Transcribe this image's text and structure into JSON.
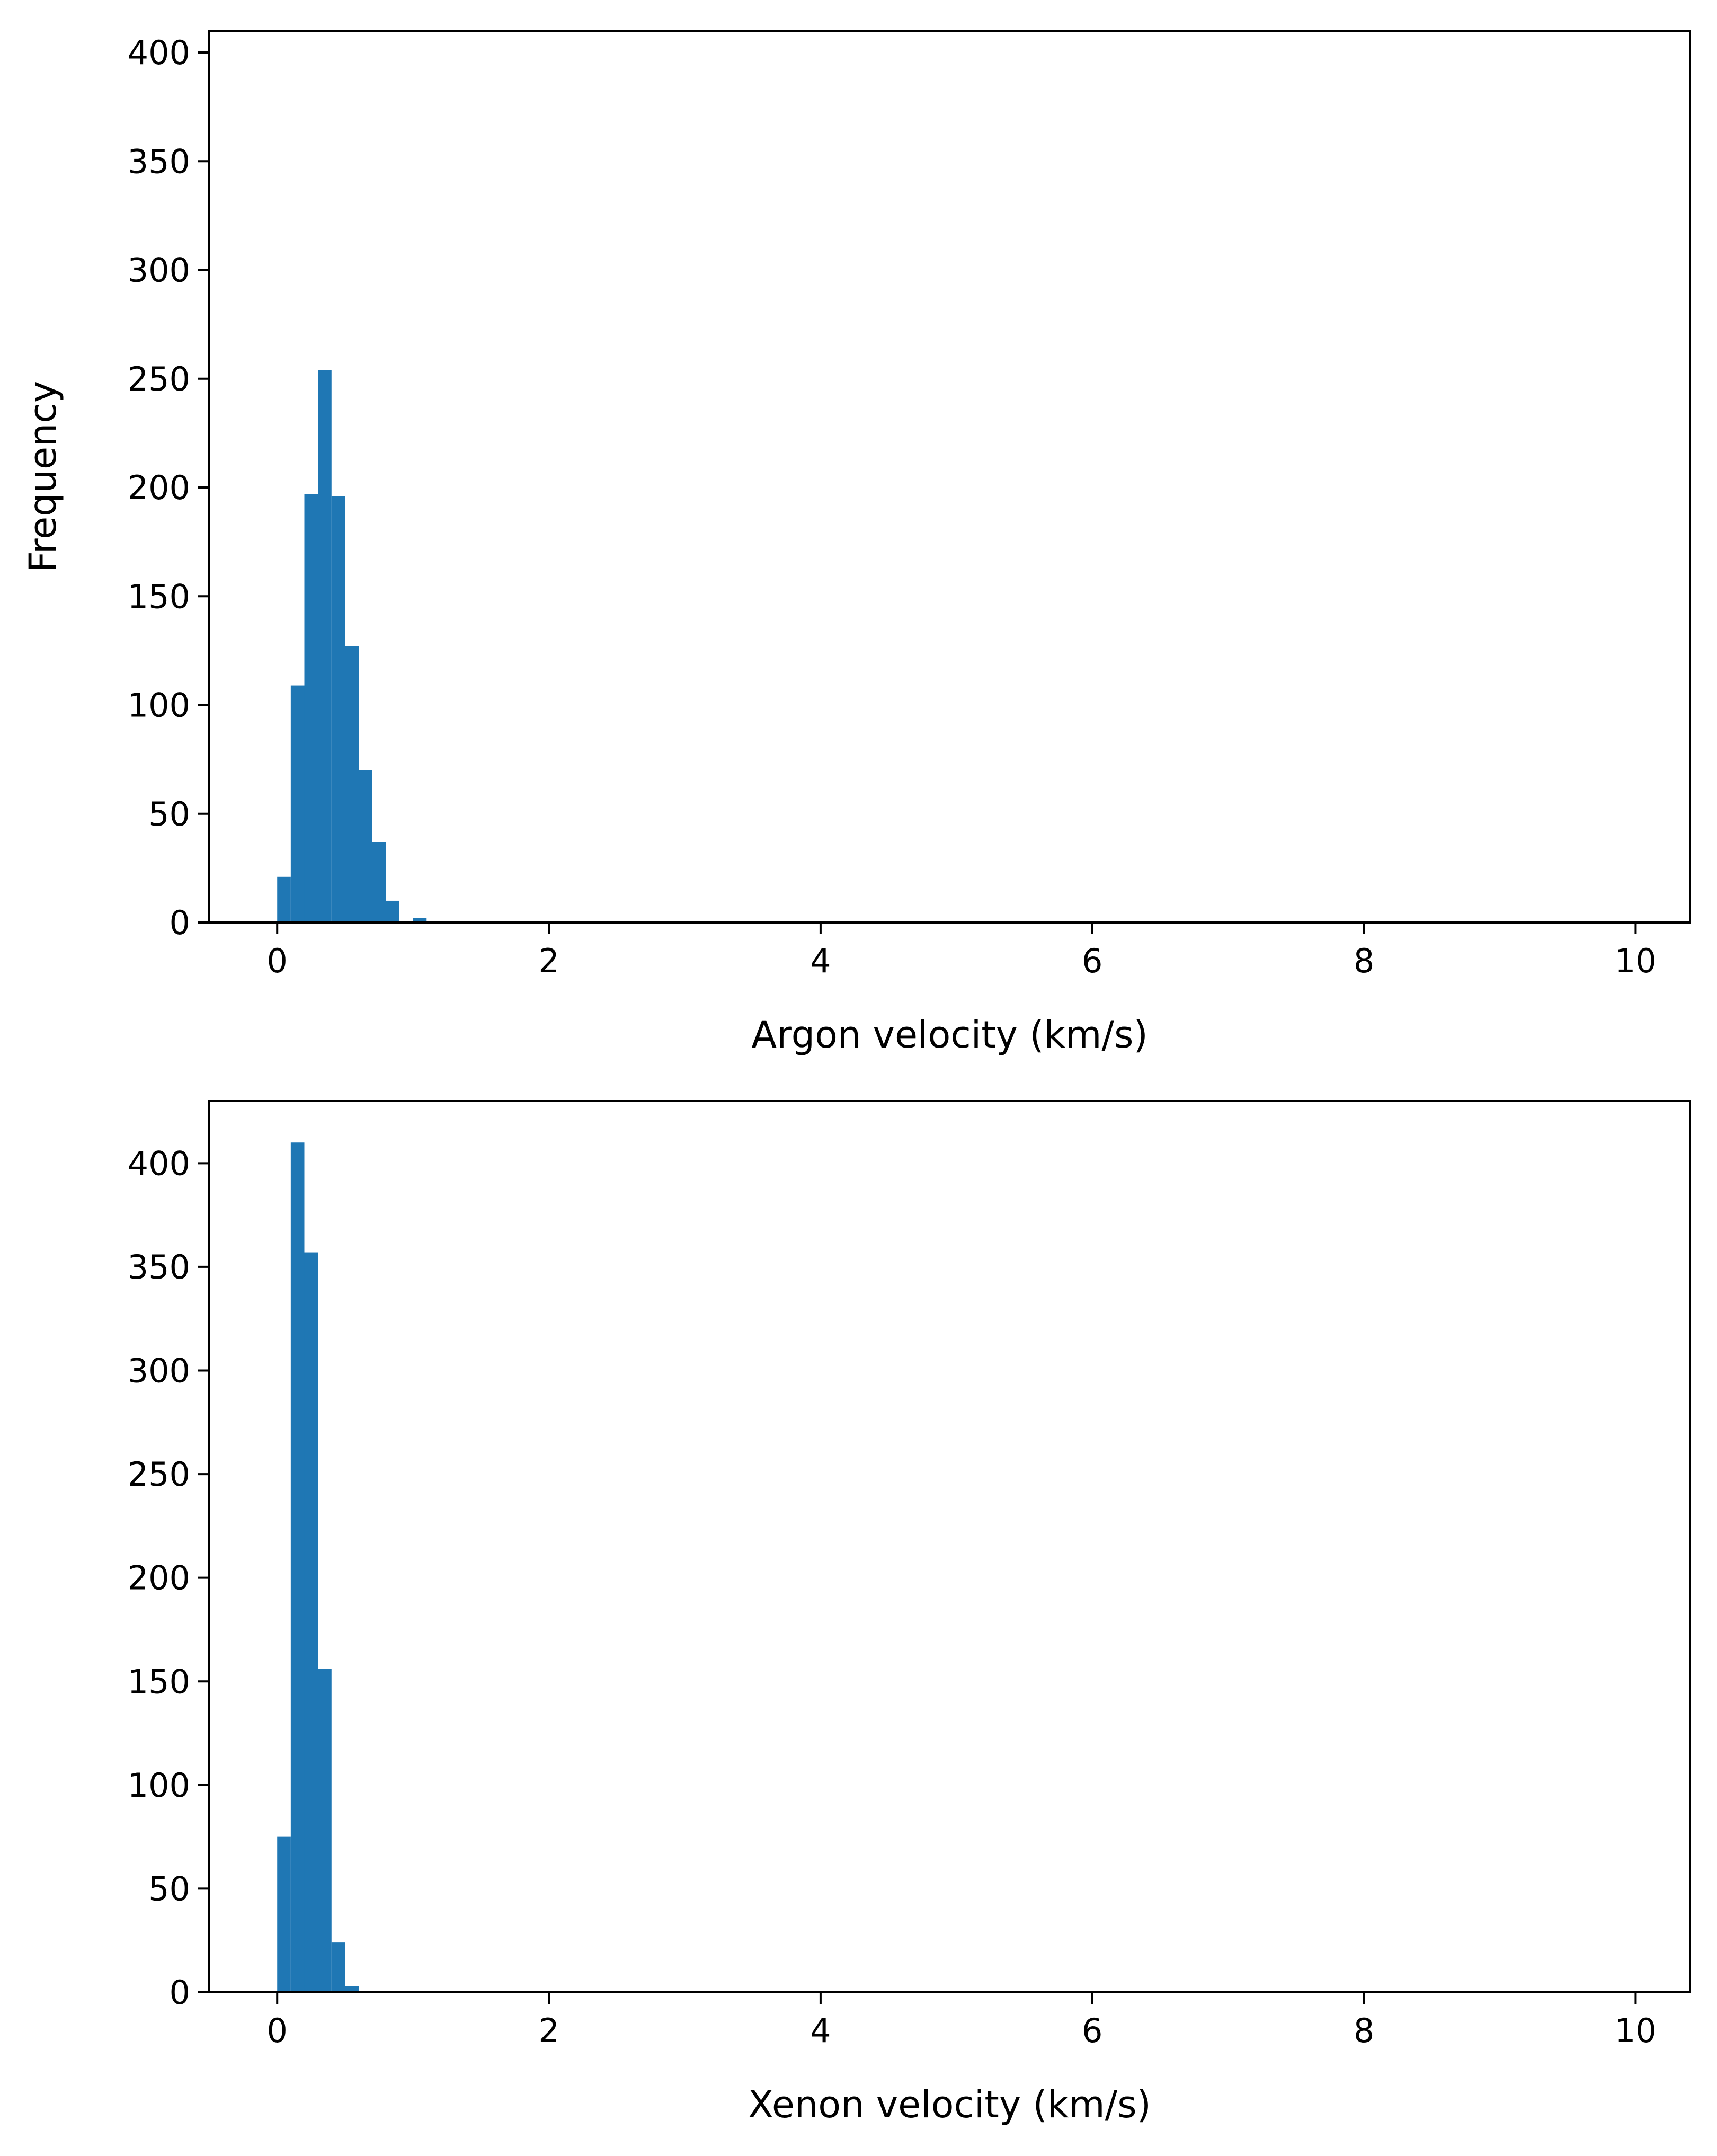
{
  "colors": {
    "bar": "#1f77b4",
    "axis": "#000000",
    "background": "#ffffff"
  },
  "chart_data": [
    {
      "type": "bar",
      "title": "",
      "xlabel": "Argon velocity (km/s)",
      "ylabel": "Frequency",
      "xlim": [
        -0.5,
        10.4
      ],
      "ylim": [
        0,
        410
      ],
      "xticks": [
        "0",
        "2",
        "4",
        "6",
        "8",
        "10"
      ],
      "xtick_values": [
        0,
        2,
        4,
        6,
        8,
        10
      ],
      "yticks": [
        "0",
        "50",
        "100",
        "150",
        "200",
        "250",
        "300",
        "350",
        "400"
      ],
      "ytick_values": [
        0,
        50,
        100,
        150,
        200,
        250,
        300,
        350,
        400
      ],
      "bin_width": 0.1,
      "bins": [
        0.0,
        0.1,
        0.2,
        0.3,
        0.4,
        0.5,
        0.6,
        0.7,
        0.8,
        0.9,
        1.0
      ],
      "values": [
        21,
        109,
        197,
        254,
        196,
        127,
        70,
        37,
        10,
        0,
        2
      ],
      "grid": false
    },
    {
      "type": "bar",
      "title": "",
      "xlabel": "Xenon velocity (km/s)",
      "ylabel": "",
      "xlim": [
        -0.5,
        10.4
      ],
      "ylim": [
        0,
        430
      ],
      "xticks": [
        "0",
        "2",
        "4",
        "6",
        "8",
        "10"
      ],
      "xtick_values": [
        0,
        2,
        4,
        6,
        8,
        10
      ],
      "yticks": [
        "0",
        "50",
        "100",
        "150",
        "200",
        "250",
        "300",
        "350",
        "400"
      ],
      "ytick_values": [
        0,
        50,
        100,
        150,
        200,
        250,
        300,
        350,
        400
      ],
      "bin_width": 0.1,
      "bins": [
        0.0,
        0.1,
        0.2,
        0.3,
        0.4,
        0.5
      ],
      "values": [
        75,
        410,
        357,
        156,
        24,
        3
      ],
      "grid": false
    }
  ]
}
